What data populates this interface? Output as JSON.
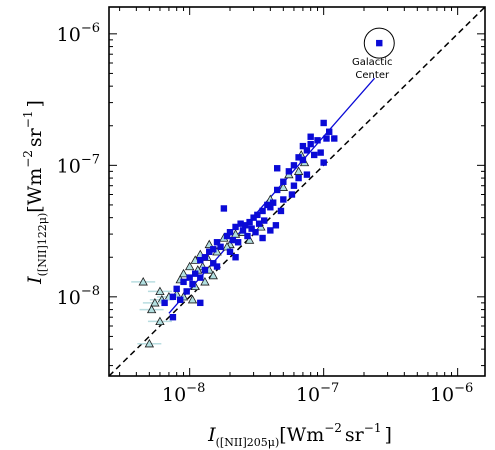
{
  "chart_data": {
    "type": "scatter",
    "xscale": "log",
    "yscale": "log",
    "xlim": [
      2.5e-09,
      1.6e-06
    ],
    "ylim": [
      2.5e-09,
      1.6e-06
    ],
    "x_ticks": [
      {
        "value": 1e-08,
        "base": "10",
        "exp": "−8"
      },
      {
        "value": 1e-07,
        "base": "10",
        "exp": "−7"
      },
      {
        "value": 1e-06,
        "base": "10",
        "exp": "−6"
      }
    ],
    "y_ticks": [
      {
        "value": 1e-08,
        "base": "10",
        "exp": "−8"
      },
      {
        "value": 1e-07,
        "base": "10",
        "exp": "−7"
      },
      {
        "value": 1e-06,
        "base": "10",
        "exp": "−6"
      }
    ],
    "xlabel": {
      "symbol": "I",
      "sub": "([NII]205μ)",
      "unit_a": "[Wm",
      "exp_a": "−2",
      "unit_b": "sr",
      "exp_b": "−1",
      "unit_c": "]"
    },
    "ylabel": {
      "symbol": "I",
      "sub": "([NII]122μ)",
      "unit_a": "[Wm",
      "exp_a": "−2",
      "unit_b": "sr",
      "exp_b": "−1",
      "unit_c": "]"
    },
    "annotation": {
      "line1": "Galactic",
      "line2": "Center",
      "x": 2.6e-07,
      "y": 8.5e-07
    },
    "colors": {
      "squares": "#0a0ad6",
      "triangles_fill": "#b2dfe0",
      "triangles_edge": "#1a1a1a",
      "errorbar": "#b8dde0",
      "fit_line": "#0a0ad6",
      "one_to_one": "#000000"
    },
    "fit_line": {
      "x": [
        7e-09,
        2.4e-07
      ],
      "y": [
        7.5e-09,
        4.6e-07
      ]
    },
    "one_to_one_line": {
      "x": [
        2.5e-09,
        1.6e-06
      ],
      "y": [
        2.5e-09,
        1.6e-06
      ]
    },
    "series": [
      {
        "marker": "square",
        "points": [
          [
            2.6e-07,
            8.5e-07
          ],
          [
            1e-07,
            2.1e-07
          ],
          [
            1.1e-07,
            1.8e-07
          ],
          [
            1.05e-07,
            1.6e-07
          ],
          [
            1.2e-07,
            1.6e-07
          ],
          [
            9e-08,
            1.55e-07
          ],
          [
            8e-08,
            1.45e-07
          ],
          [
            7.5e-08,
            1.3e-07
          ],
          [
            9.5e-08,
            1.25e-07
          ],
          [
            8.5e-08,
            1.2e-07
          ],
          [
            7e-08,
            1.1e-07
          ],
          [
            6.5e-08,
            1.15e-07
          ],
          [
            1e-07,
            1.05e-07
          ],
          [
            6e-08,
            1e-07
          ],
          [
            5.5e-08,
            9e-08
          ],
          [
            7.5e-08,
            8.5e-08
          ],
          [
            6.5e-08,
            8e-08
          ],
          [
            5e-08,
            7.5e-08
          ],
          [
            6e-08,
            7e-08
          ],
          [
            5.8e-08,
            6e-08
          ],
          [
            4.5e-08,
            6.5e-08
          ],
          [
            5e-08,
            5.5e-08
          ],
          [
            4.2e-08,
            5.2e-08
          ],
          [
            3.8e-08,
            5e-08
          ],
          [
            4.8e-08,
            4.5e-08
          ],
          [
            3.5e-08,
            4.5e-08
          ],
          [
            4e-08,
            4.8e-08
          ],
          [
            3.2e-08,
            4.2e-08
          ],
          [
            3e-08,
            4e-08
          ],
          [
            3.6e-08,
            3.8e-08
          ],
          [
            3.3e-08,
            3.6e-08
          ],
          [
            2.8e-08,
            3.7e-08
          ],
          [
            2.6e-08,
            3.5e-08
          ],
          [
            2.4e-08,
            3.6e-08
          ],
          [
            2.2e-08,
            3.4e-08
          ],
          [
            2.5e-08,
            3.2e-08
          ],
          [
            2.9e-08,
            3.3e-08
          ],
          [
            3.1e-08,
            3.1e-08
          ],
          [
            2.7e-08,
            2.9e-08
          ],
          [
            2e-08,
            3.1e-08
          ],
          [
            1.9e-08,
            2.9e-08
          ],
          [
            2.1e-08,
            2.7e-08
          ],
          [
            2.3e-08,
            2.6e-08
          ],
          [
            4e-08,
            3.2e-08
          ],
          [
            4.4e-08,
            3.5e-08
          ],
          [
            3.5e-08,
            2.8e-08
          ],
          [
            1.8e-08,
            4.7e-08
          ],
          [
            1.6e-08,
            2.6e-08
          ],
          [
            1.7e-08,
            2.4e-08
          ],
          [
            1.5e-08,
            2.3e-08
          ],
          [
            1.4e-08,
            2.2e-08
          ],
          [
            1.3e-08,
            2e-08
          ],
          [
            1.2e-08,
            1.9e-08
          ],
          [
            1.5e-08,
            1.8e-08
          ],
          [
            1.3e-08,
            1.6e-08
          ],
          [
            1.6e-08,
            1.7e-08
          ],
          [
            1.1e-08,
            1.5e-08
          ],
          [
            1e-08,
            1.4e-08
          ],
          [
            1.2e-08,
            1.4e-08
          ],
          [
            9e-09,
            1.3e-08
          ],
          [
            1.05e-08,
            1.25e-08
          ],
          [
            8e-09,
            1.15e-08
          ],
          [
            9.5e-09,
            1.1e-08
          ],
          [
            7.5e-09,
            1e-08
          ],
          [
            8.5e-09,
            9.5e-09
          ],
          [
            1.2e-08,
            9e-09
          ],
          [
            7.5e-09,
            7e-09
          ],
          [
            6.5e-09,
            9e-09
          ],
          [
            2e-08,
            2.2e-08
          ],
          [
            2.2e-08,
            2e-08
          ],
          [
            4.5e-08,
            9.5e-08
          ],
          [
            8e-08,
            1.65e-07
          ],
          [
            7e-08,
            1.4e-07
          ]
        ]
      },
      {
        "marker": "triangle",
        "points": [
          [
            6.8e-08,
            1.2e-07
          ],
          [
            7.2e-08,
            1.05e-07
          ],
          [
            6.5e-08,
            9e-08
          ],
          [
            5.5e-08,
            8.5e-08
          ],
          [
            5e-08,
            6.8e-08
          ],
          [
            4e-08,
            5.5e-08
          ],
          [
            3.4e-08,
            3.4e-08
          ],
          [
            2.5e-08,
            3.1e-08
          ],
          [
            2.2e-08,
            3e-08
          ],
          [
            1.8e-08,
            2.8e-08
          ],
          [
            2e-08,
            2.5e-08
          ],
          [
            1.4e-08,
            2.5e-08
          ],
          [
            1.6e-08,
            2.2e-08
          ],
          [
            1.2e-08,
            2.1e-08
          ],
          [
            1.35e-08,
            2e-08
          ],
          [
            1.1e-08,
            1.9e-08
          ],
          [
            1.25e-08,
            1.7e-08
          ],
          [
            1.4e-08,
            1.6e-08
          ],
          [
            1.15e-08,
            1.6e-08
          ],
          [
            1e-08,
            1.7e-08
          ],
          [
            9e-09,
            1.5e-08
          ],
          [
            1.5e-08,
            1.45e-08
          ],
          [
            8.5e-09,
            1.35e-08
          ],
          [
            1.3e-08,
            1.3e-08
          ],
          [
            1.1e-08,
            1.2e-08
          ],
          [
            9e-09,
            1e-08
          ],
          [
            8e-09,
            1.05e-08
          ],
          [
            6e-09,
            1.1e-08
          ],
          [
            7e-09,
            1e-08
          ],
          [
            6.2e-09,
            9.5e-09
          ],
          [
            5.5e-09,
            9e-09
          ],
          [
            4.5e-09,
            1.3e-08
          ],
          [
            5.2e-09,
            8e-09
          ],
          [
            1.05e-08,
            9.5e-09
          ],
          [
            6e-09,
            6.5e-09
          ],
          [
            5e-09,
            4.4e-09
          ],
          [
            1.9e-08,
            2.4e-08
          ],
          [
            2.8e-08,
            2.7e-08
          ]
        ]
      }
    ]
  }
}
